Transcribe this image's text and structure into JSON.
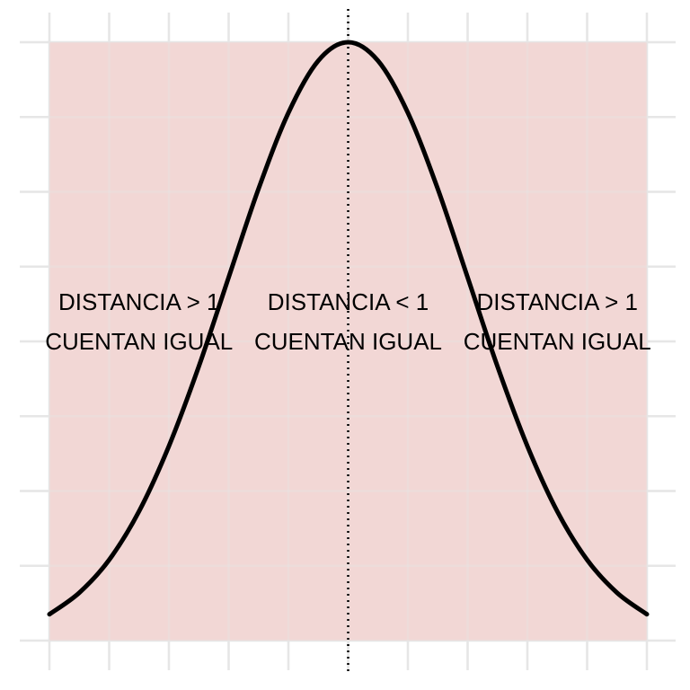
{
  "chart_data": {
    "type": "line",
    "title": "",
    "xlabel": "",
    "ylabel": "",
    "xlim": [
      -2.5,
      2.5
    ],
    "ylim": [
      0,
      1
    ],
    "grid": true,
    "x_gridlines": [
      -2.5,
      -2,
      -1.5,
      -1,
      -0.5,
      0,
      0.5,
      1,
      1.5,
      2,
      2.5
    ],
    "y_gridlines": [
      0,
      0.125,
      0.25,
      0.375,
      0.5,
      0.625,
      0.75,
      0.875,
      1
    ],
    "shaded_region": {
      "x": [
        -2.5,
        2.5
      ],
      "y": [
        0,
        1
      ],
      "color": "#f2d7d5"
    },
    "reference_line": {
      "x": 0,
      "style": "dotted"
    },
    "series": [
      {
        "color": "#000000",
        "x": [
          -2.5,
          -2.25,
          -2,
          -1.75,
          -1.5,
          -1.25,
          -1,
          -0.75,
          -0.5,
          -0.25,
          0,
          0.25,
          0.5,
          0.75,
          1,
          1.25,
          1.5,
          1.75,
          2,
          2.25,
          2.5
        ],
        "y": [
          0.044,
          0.08,
          0.135,
          0.216,
          0.325,
          0.458,
          0.607,
          0.755,
          0.882,
          0.969,
          1.0,
          0.969,
          0.882,
          0.755,
          0.607,
          0.458,
          0.325,
          0.216,
          0.135,
          0.08,
          0.044
        ]
      }
    ],
    "annotations": [
      {
        "x": -1.75,
        "y": 0.53,
        "lines": [
          "DISTANCIA > 1",
          "CUENTAN IGUAL"
        ]
      },
      {
        "x": 0,
        "y": 0.53,
        "lines": [
          "DISTANCIA < 1",
          "CUENTAN IGUAL"
        ]
      },
      {
        "x": 1.75,
        "y": 0.53,
        "lines": [
          "DISTANCIA > 1",
          "CUENTAN IGUAL"
        ]
      }
    ]
  },
  "colors": {
    "grid": "#e6e6e6",
    "curve": "#000000"
  }
}
